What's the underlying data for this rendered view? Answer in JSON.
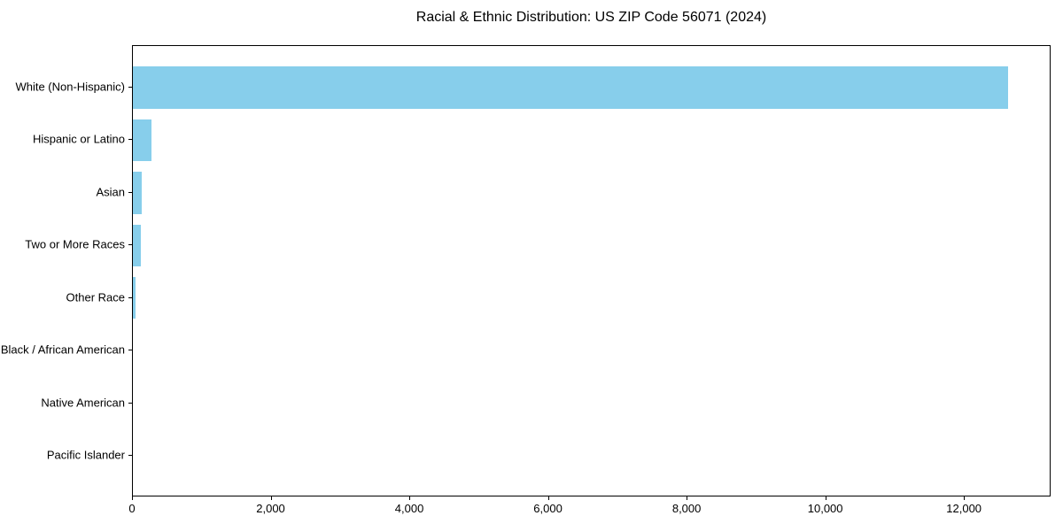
{
  "chart_data": {
    "type": "bar",
    "orientation": "horizontal",
    "title": "Racial & Ethnic Distribution: US ZIP Code 56071 (2024)",
    "categories": [
      "White (Non-Hispanic)",
      "Hispanic or Latino",
      "Asian",
      "Two or More Races",
      "Other Race",
      "Black / African American",
      "Native American",
      "Pacific Islander"
    ],
    "values": [
      12620,
      270,
      130,
      115,
      35,
      0,
      0,
      0
    ],
    "xlabel": "",
    "ylabel": "",
    "xlim": [
      0,
      13250
    ],
    "x_ticks": [
      0,
      2000,
      4000,
      6000,
      8000,
      10000,
      12000
    ],
    "x_tick_labels": [
      "0",
      "2,000",
      "4,000",
      "6,000",
      "8,000",
      "10,000",
      "12,000"
    ],
    "grid": false,
    "legend": "none",
    "bar_color": "#87CEEB",
    "axis_color": "#000000",
    "text_color": "#000000",
    "background": "#FFFFFF"
  }
}
